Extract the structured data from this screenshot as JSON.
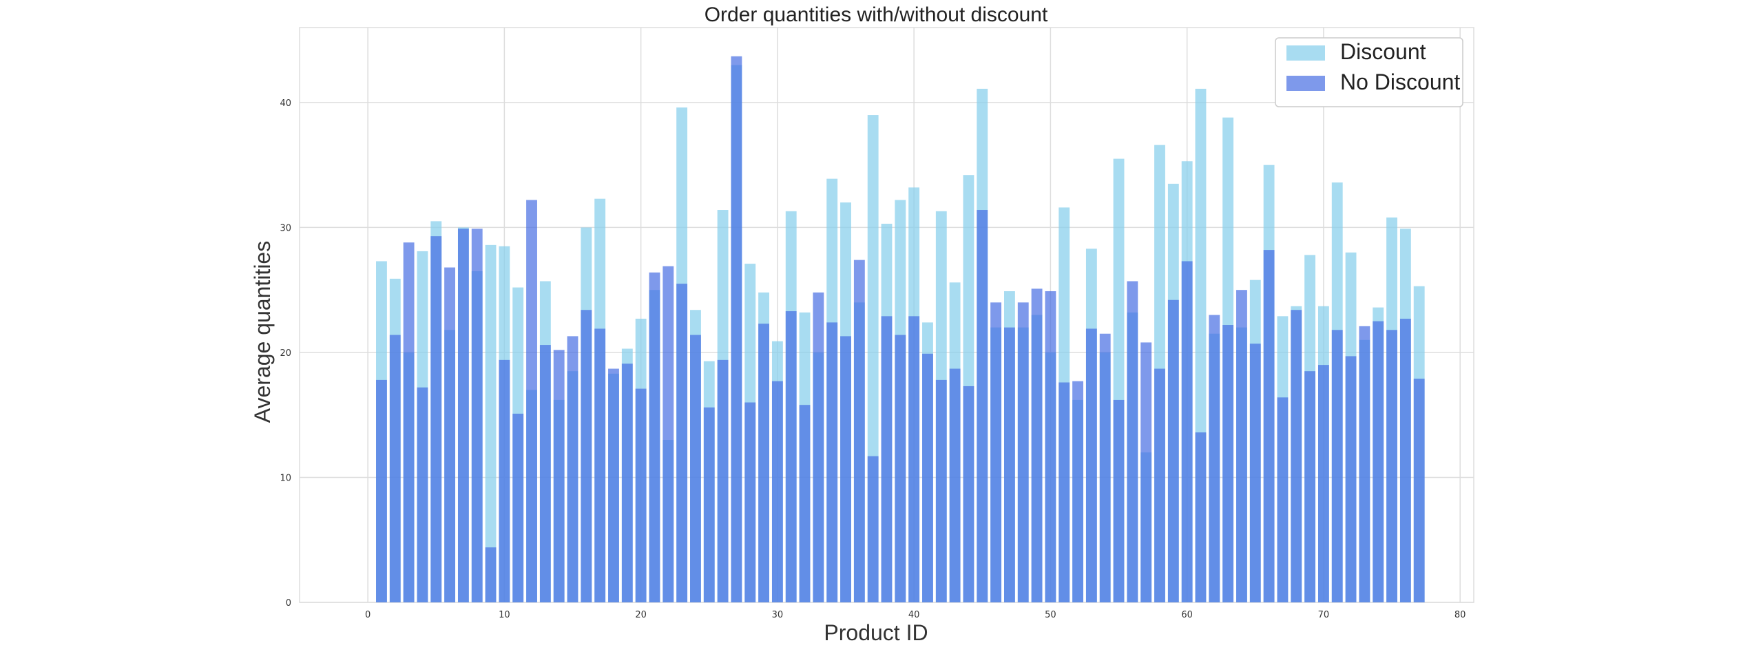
{
  "chart_data": {
    "type": "bar",
    "title": "Order quantities with/without discount",
    "xlabel": "Product ID",
    "ylabel": "Average quantities",
    "xlim": [
      -5,
      81
    ],
    "ylim": [
      0,
      46
    ],
    "x_ticks": [
      0,
      10,
      20,
      30,
      40,
      50,
      60,
      70,
      80
    ],
    "y_ticks": [
      0,
      10,
      20,
      30,
      40
    ],
    "grid": true,
    "legend_position": "top-right",
    "x": [
      1,
      2,
      3,
      4,
      5,
      6,
      7,
      8,
      9,
      10,
      11,
      12,
      13,
      14,
      15,
      16,
      17,
      18,
      19,
      20,
      21,
      22,
      23,
      24,
      25,
      26,
      27,
      28,
      29,
      30,
      31,
      32,
      33,
      34,
      35,
      36,
      37,
      38,
      39,
      40,
      41,
      42,
      43,
      44,
      45,
      46,
      47,
      48,
      49,
      50,
      51,
      52,
      53,
      54,
      55,
      56,
      57,
      58,
      59,
      60,
      61,
      62,
      63,
      64,
      65,
      66,
      67,
      68,
      69,
      70,
      71,
      72,
      73,
      74,
      75,
      76,
      77
    ],
    "series": [
      {
        "name": "Discount",
        "color": "#87CEEB",
        "values": [
          27.3,
          25.9,
          20.0,
          28.1,
          30.5,
          21.8,
          30.0,
          26.5,
          28.6,
          28.5,
          25.2,
          17.0,
          25.7,
          16.2,
          18.5,
          30.0,
          32.3,
          18.3,
          20.3,
          22.7,
          25.0,
          13.0,
          39.6,
          23.4,
          19.3,
          31.4,
          43.0,
          27.1,
          24.8,
          20.9,
          31.3,
          23.2,
          20.0,
          33.9,
          32.0,
          24.0,
          39.0,
          30.3,
          32.2,
          33.2,
          22.4,
          31.3,
          25.6,
          34.2,
          41.1,
          22.0,
          24.9,
          22.0,
          23.0,
          20.0,
          31.6,
          16.2,
          28.3,
          20.0,
          35.5,
          23.2,
          12.0,
          36.6,
          33.5,
          35.3,
          41.1,
          21.5,
          38.8,
          22.0,
          25.8,
          35.0,
          22.9,
          23.7,
          27.8,
          23.7,
          33.6,
          28.0,
          21.0,
          23.6,
          30.8,
          29.9,
          25.3
        ]
      },
      {
        "name": "No Discount",
        "color": "#4169E1",
        "values": [
          17.8,
          21.4,
          28.8,
          17.2,
          29.3,
          26.8,
          29.9,
          29.9,
          4.4,
          19.4,
          15.1,
          32.2,
          20.6,
          20.2,
          21.3,
          23.4,
          21.9,
          18.7,
          19.1,
          17.1,
          26.4,
          26.9,
          25.5,
          21.4,
          15.6,
          19.4,
          43.7,
          16.0,
          22.3,
          17.7,
          23.3,
          15.8,
          24.8,
          22.4,
          21.3,
          27.4,
          11.7,
          22.9,
          21.4,
          22.9,
          19.9,
          17.8,
          18.7,
          17.3,
          31.4,
          24.0,
          22.0,
          24.0,
          25.1,
          24.9,
          17.6,
          17.7,
          21.9,
          21.5,
          16.2,
          25.7,
          20.8,
          18.7,
          24.2,
          27.3,
          13.6,
          23.0,
          22.2,
          25.0,
          20.7,
          28.2,
          16.4,
          23.4,
          18.5,
          19.0,
          21.8,
          19.7,
          22.1,
          22.5,
          21.8,
          22.7,
          17.9
        ]
      }
    ]
  }
}
